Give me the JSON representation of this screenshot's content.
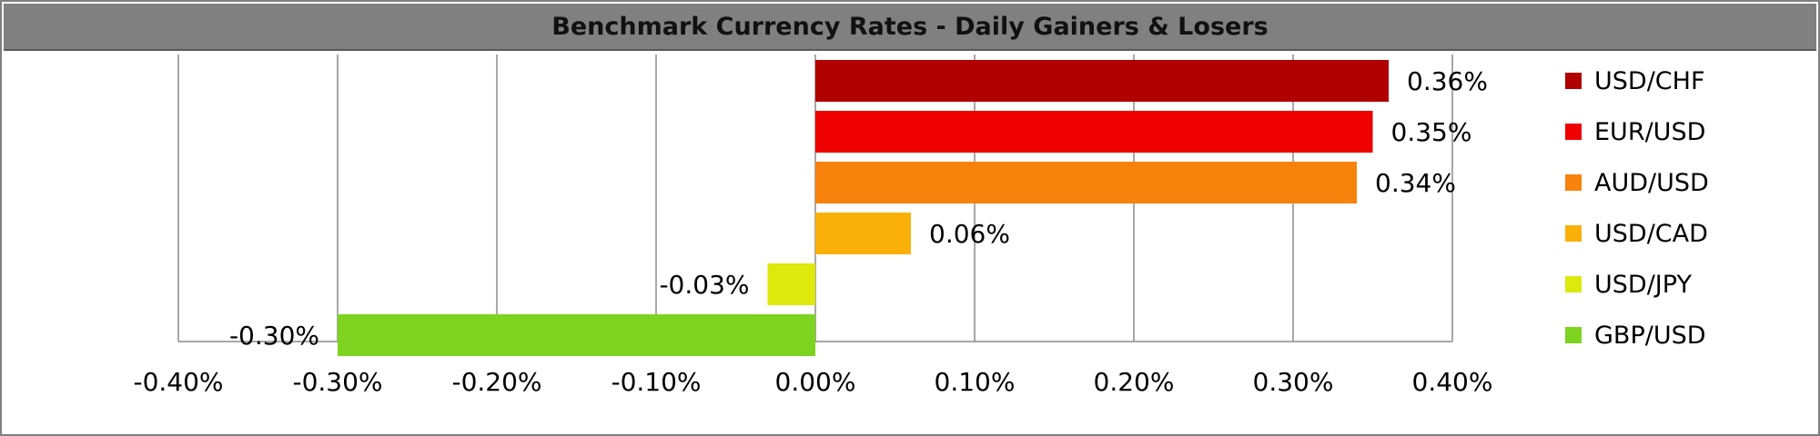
{
  "title": "Benchmark Currency Rates - Daily Gainers & Losers",
  "chart_data": {
    "type": "bar",
    "orientation": "horizontal",
    "title": "Benchmark Currency Rates - Daily Gainers & Losers",
    "xlabel": "",
    "ylabel": "",
    "xlim": [
      -0.4,
      0.4
    ],
    "x_ticks": [
      -0.4,
      -0.3,
      -0.2,
      -0.1,
      0.0,
      0.1,
      0.2,
      0.3,
      0.4
    ],
    "x_tick_labels": [
      "-0.40%",
      "-0.30%",
      "-0.20%",
      "-0.10%",
      "0.00%",
      "0.10%",
      "0.20%",
      "0.30%",
      "0.40%"
    ],
    "vertical_grid": true,
    "legend_position": "right",
    "unit": "%",
    "series": [
      {
        "name": "USD/CHF",
        "value": 0.36,
        "label": "0.36%",
        "color": "#b00000"
      },
      {
        "name": "EUR/USD",
        "value": 0.35,
        "label": "0.35%",
        "color": "#ee0000"
      },
      {
        "name": "AUD/USD",
        "value": 0.34,
        "label": "0.34%",
        "color": "#f7820c"
      },
      {
        "name": "USD/CAD",
        "value": 0.06,
        "label": "0.06%",
        "color": "#f9b10a"
      },
      {
        "name": "USD/JPY",
        "value": -0.03,
        "label": "-0.03%",
        "color": "#dde80c"
      },
      {
        "name": "GBP/USD",
        "value": -0.3,
        "label": "-0.30%",
        "color": "#7ed321"
      }
    ]
  }
}
